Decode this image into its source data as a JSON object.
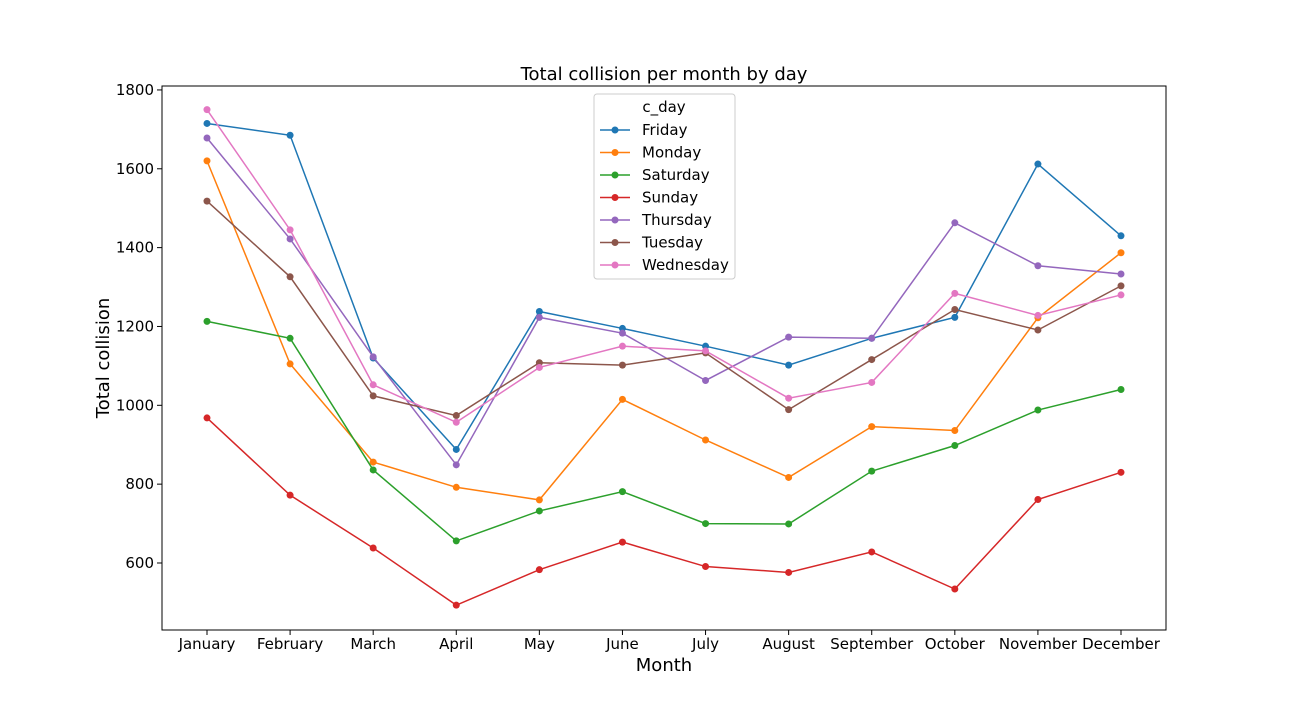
{
  "chart_data": {
    "type": "line",
    "title": "Total collision per month by day",
    "xlabel": "Month",
    "ylabel": "Total collision",
    "categories": [
      "January",
      "February",
      "March",
      "April",
      "May",
      "June",
      "July",
      "August",
      "September",
      "October",
      "November",
      "December"
    ],
    "ylim": [
      430,
      1810
    ],
    "yticks": [
      600,
      800,
      1000,
      1200,
      1400,
      1600,
      1800
    ],
    "grid": false,
    "legend": {
      "title": "c_day",
      "placement": "upper center"
    },
    "series": [
      {
        "name": "Friday",
        "color": "#1f77b4",
        "values": [
          1715,
          1685,
          1120,
          888,
          1238,
          1195,
          1150,
          1102,
          1170,
          1223,
          1612,
          1430
        ]
      },
      {
        "name": "Monday",
        "color": "#ff7f0e",
        "values": [
          1620,
          1105,
          856,
          792,
          760,
          1015,
          912,
          817,
          946,
          936,
          1222,
          1387
        ]
      },
      {
        "name": "Saturday",
        "color": "#2ca02c",
        "values": [
          1213,
          1170,
          836,
          656,
          732,
          781,
          700,
          699,
          833,
          898,
          988,
          1040
        ]
      },
      {
        "name": "Sunday",
        "color": "#d62728",
        "values": [
          968,
          772,
          638,
          493,
          583,
          653,
          591,
          576,
          628,
          534,
          761,
          830
        ]
      },
      {
        "name": "Thursday",
        "color": "#9467bd",
        "values": [
          1678,
          1422,
          1123,
          849,
          1223,
          1183,
          1063,
          1173,
          1170,
          1463,
          1354,
          1333
        ]
      },
      {
        "name": "Tuesday",
        "color": "#8c564b",
        "values": [
          1518,
          1326,
          1024,
          974,
          1108,
          1102,
          1133,
          989,
          1116,
          1243,
          1191,
          1303
        ]
      },
      {
        "name": "Wednesday",
        "color": "#e377c2",
        "values": [
          1750,
          1445,
          1052,
          957,
          1096,
          1150,
          1138,
          1018,
          1058,
          1284,
          1228,
          1280
        ]
      }
    ]
  }
}
